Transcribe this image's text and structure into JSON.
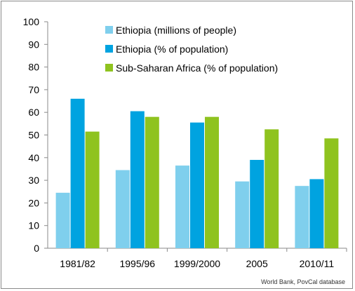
{
  "chart_data": {
    "type": "bar",
    "categories": [
      "1981/82",
      "1995/96",
      "1999/2000",
      "2005",
      "2010/11"
    ],
    "series": [
      {
        "name": "Ethiopia (millions of people)",
        "color": "#7fcfed",
        "values": [
          24.5,
          34.5,
          36.5,
          29.5,
          27.5
        ]
      },
      {
        "name": "Ethiopia (% of population)",
        "color": "#00a3e0",
        "values": [
          66,
          60.5,
          55.5,
          39,
          30.5
        ]
      },
      {
        "name": "Sub-Saharan Africa (% of population)",
        "color": "#8fc31f",
        "values": [
          51.5,
          58,
          58,
          52.5,
          48.5
        ]
      }
    ],
    "ylim": [
      0,
      100
    ],
    "yticks": [
      0,
      10,
      20,
      30,
      40,
      50,
      60,
      70,
      80,
      90,
      100
    ],
    "grid": false,
    "legend_position": "top-center",
    "source": "World Bank, PovCal database"
  }
}
